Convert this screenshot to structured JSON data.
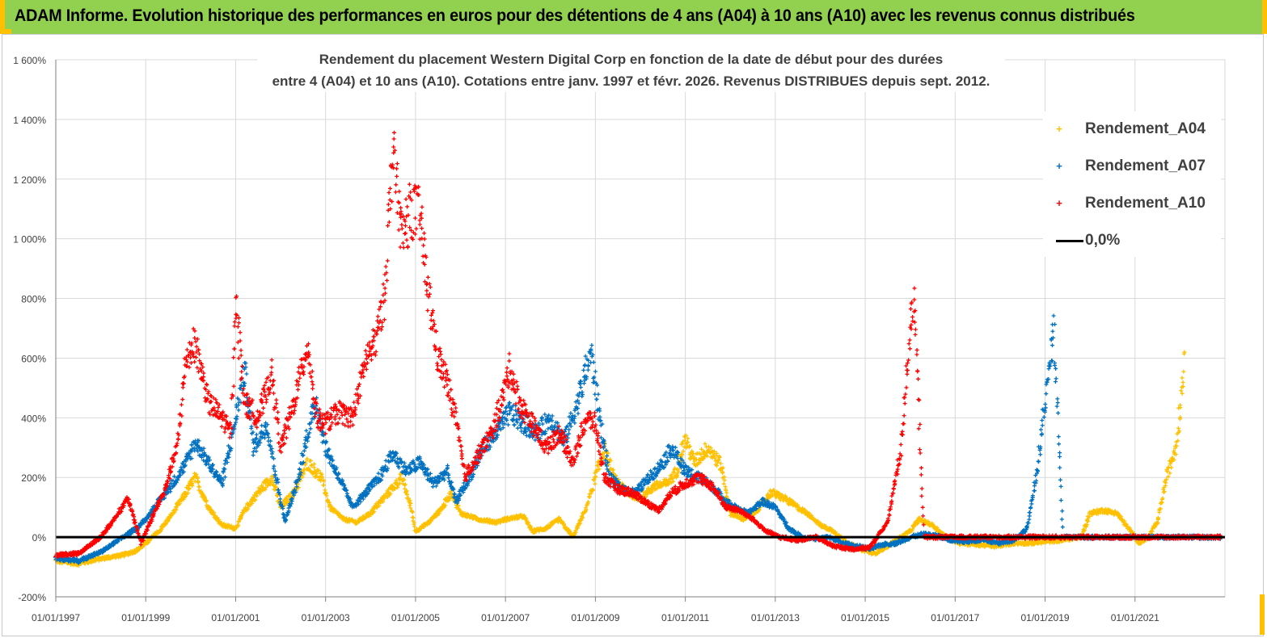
{
  "header": {
    "title": "ADAM Informe. Evolution historique des performances en euros pour des détentions de 4 ans (A04) à 10 ans (A10) avec les revenus connus distribués"
  },
  "chart_data": {
    "type": "scatter",
    "title_line1": "Rendement du placement Western  Digital Corp en fonction de la date de début pour des durées",
    "title_line2": "entre 4 (A04) et 10 ans (A10).  Cotations entre janv. 1997 et févr. 2026. Revenus DISTRIBUES depuis sept. 2012.",
    "x_tick_labels": [
      "01/01/1997",
      "01/01/1999",
      "01/01/2001",
      "01/01/2003",
      "01/01/2005",
      "01/01/2007",
      "01/01/2009",
      "01/01/2011",
      "01/01/2013",
      "01/01/2015",
      "01/01/2017",
      "01/01/2019",
      "01/01/2021"
    ],
    "x_range": [
      1997.0,
      2023.0
    ],
    "y_tick_labels": [
      "-200%",
      "0%",
      "200%",
      "400%",
      "600%",
      "800%",
      "1 000%",
      "1 200%",
      "1 400%",
      "1 600%"
    ],
    "y_range": [
      -200,
      1600
    ],
    "series": [
      {
        "name": "Rendement_A04",
        "color": "#ffc000",
        "points": [
          [
            1997.0,
            -80
          ],
          [
            1997.5,
            -88
          ],
          [
            1998.0,
            -72
          ],
          [
            1998.5,
            -60
          ],
          [
            1998.8,
            -45
          ],
          [
            1999.0,
            -20
          ],
          [
            1999.3,
            20
          ],
          [
            1999.6,
            80
          ],
          [
            1999.9,
            150
          ],
          [
            2000.1,
            200
          ],
          [
            2000.4,
            100
          ],
          [
            2000.7,
            40
          ],
          [
            2001.0,
            30
          ],
          [
            2001.2,
            90
          ],
          [
            2001.5,
            150
          ],
          [
            2001.8,
            200
          ],
          [
            2002.0,
            100
          ],
          [
            2002.3,
            150
          ],
          [
            2002.6,
            250
          ],
          [
            2002.9,
            200
          ],
          [
            2003.1,
            100
          ],
          [
            2003.4,
            60
          ],
          [
            2003.7,
            50
          ],
          [
            2004.0,
            80
          ],
          [
            2004.4,
            150
          ],
          [
            2004.7,
            200
          ],
          [
            2004.9,
            100
          ],
          [
            2005.0,
            20
          ],
          [
            2005.3,
            50
          ],
          [
            2005.6,
            100
          ],
          [
            2005.8,
            150
          ],
          [
            2006.0,
            80
          ],
          [
            2006.4,
            60
          ],
          [
            2006.8,
            50
          ],
          [
            2007.0,
            60
          ],
          [
            2007.4,
            70
          ],
          [
            2007.6,
            20
          ],
          [
            2007.9,
            30
          ],
          [
            2008.2,
            60
          ],
          [
            2008.5,
            0
          ],
          [
            2008.8,
            100
          ],
          [
            2009.0,
            200
          ],
          [
            2009.2,
            300
          ],
          [
            2009.4,
            200
          ],
          [
            2009.7,
            150
          ],
          [
            2010.0,
            130
          ],
          [
            2010.3,
            170
          ],
          [
            2010.6,
            180
          ],
          [
            2010.8,
            220
          ],
          [
            2011.0,
            330
          ],
          [
            2011.2,
            250
          ],
          [
            2011.5,
            300
          ],
          [
            2011.8,
            240
          ],
          [
            2012.0,
            80
          ],
          [
            2012.3,
            60
          ],
          [
            2012.6,
            90
          ],
          [
            2012.9,
            150
          ],
          [
            2013.2,
            130
          ],
          [
            2013.5,
            100
          ],
          [
            2013.8,
            70
          ],
          [
            2014.0,
            40
          ],
          [
            2014.3,
            20
          ],
          [
            2014.6,
            -20
          ],
          [
            2014.9,
            -40
          ],
          [
            2015.2,
            -55
          ],
          [
            2015.5,
            -30
          ],
          [
            2015.8,
            0
          ],
          [
            2016.0,
            20
          ],
          [
            2016.2,
            60
          ],
          [
            2016.5,
            40
          ],
          [
            2016.8,
            0
          ],
          [
            2017.1,
            -20
          ],
          [
            2017.5,
            -25
          ],
          [
            2017.9,
            -30
          ],
          [
            2018.3,
            -20
          ],
          [
            2018.7,
            -20
          ],
          [
            2019.0,
            -15
          ],
          [
            2019.4,
            -10
          ],
          [
            2019.8,
            0
          ],
          [
            2020.0,
            80
          ],
          [
            2020.3,
            90
          ],
          [
            2020.6,
            80
          ],
          [
            2020.9,
            20
          ],
          [
            2021.1,
            -20
          ],
          [
            2021.3,
            0
          ],
          [
            2021.5,
            50
          ],
          [
            2021.7,
            200
          ],
          [
            2021.9,
            300
          ],
          [
            2022.0,
            420
          ],
          [
            2022.1,
            620
          ]
        ]
      },
      {
        "name": "Rendement_A07",
        "color": "#0070c0",
        "points": [
          [
            1997.0,
            -70
          ],
          [
            1997.5,
            -80
          ],
          [
            1998.0,
            -50
          ],
          [
            1998.5,
            0
          ],
          [
            1998.8,
            30
          ],
          [
            1999.0,
            60
          ],
          [
            1999.3,
            120
          ],
          [
            1999.6,
            180
          ],
          [
            1999.9,
            250
          ],
          [
            2000.1,
            320
          ],
          [
            2000.4,
            250
          ],
          [
            2000.7,
            180
          ],
          [
            2001.0,
            400
          ],
          [
            2001.2,
            560
          ],
          [
            2001.4,
            300
          ],
          [
            2001.7,
            380
          ],
          [
            2001.9,
            200
          ],
          [
            2002.1,
            50
          ],
          [
            2002.4,
            200
          ],
          [
            2002.6,
            350
          ],
          [
            2002.8,
            450
          ],
          [
            2003.0,
            300
          ],
          [
            2003.3,
            200
          ],
          [
            2003.6,
            100
          ],
          [
            2003.9,
            150
          ],
          [
            2004.2,
            200
          ],
          [
            2004.5,
            280
          ],
          [
            2004.8,
            220
          ],
          [
            2005.1,
            250
          ],
          [
            2005.4,
            180
          ],
          [
            2005.7,
            220
          ],
          [
            2005.9,
            120
          ],
          [
            2006.2,
            200
          ],
          [
            2006.5,
            300
          ],
          [
            2006.8,
            350
          ],
          [
            2007.1,
            420
          ],
          [
            2007.4,
            380
          ],
          [
            2007.7,
            350
          ],
          [
            2008.0,
            400
          ],
          [
            2008.3,
            320
          ],
          [
            2008.6,
            450
          ],
          [
            2008.9,
            620
          ],
          [
            2009.1,
            400
          ],
          [
            2009.3,
            200
          ],
          [
            2009.6,
            160
          ],
          [
            2009.9,
            150
          ],
          [
            2010.2,
            200
          ],
          [
            2010.5,
            250
          ],
          [
            2010.7,
            300
          ],
          [
            2011.0,
            220
          ],
          [
            2011.3,
            200
          ],
          [
            2011.6,
            170
          ],
          [
            2011.9,
            120
          ],
          [
            2012.1,
            100
          ],
          [
            2012.4,
            80
          ],
          [
            2012.7,
            120
          ],
          [
            2013.0,
            100
          ],
          [
            2013.3,
            30
          ],
          [
            2013.6,
            0
          ],
          [
            2013.9,
            -5
          ],
          [
            2014.2,
            0
          ],
          [
            2014.5,
            -20
          ],
          [
            2014.8,
            -30
          ],
          [
            2015.1,
            -40
          ],
          [
            2015.4,
            -25
          ],
          [
            2015.7,
            -20
          ],
          [
            2016.0,
            0
          ],
          [
            2016.3,
            10
          ],
          [
            2016.6,
            5
          ],
          [
            2016.9,
            -10
          ],
          [
            2017.2,
            -15
          ],
          [
            2017.6,
            -10
          ],
          [
            2018.0,
            -20
          ],
          [
            2018.3,
            -10
          ],
          [
            2018.6,
            30
          ],
          [
            2018.8,
            200
          ],
          [
            2019.0,
            450
          ],
          [
            2019.2,
            700
          ],
          [
            2019.4,
            0
          ],
          [
            2020.0,
            0
          ],
          [
            2021.0,
            0
          ],
          [
            2022.0,
            0
          ],
          [
            2022.9,
            0
          ]
        ]
      },
      {
        "name": "Rendement_A10",
        "color": "#ff0000",
        "points": [
          [
            1997.0,
            -60
          ],
          [
            1997.5,
            -55
          ],
          [
            1998.0,
            0
          ],
          [
            1998.3,
            60
          ],
          [
            1998.6,
            130
          ],
          [
            1998.9,
            -20
          ],
          [
            1999.1,
            50
          ],
          [
            1999.4,
            150
          ],
          [
            1999.7,
            300
          ],
          [
            1999.9,
            600
          ],
          [
            2000.1,
            650
          ],
          [
            2000.4,
            450
          ],
          [
            2000.7,
            400
          ],
          [
            2000.9,
            350
          ],
          [
            2001.0,
            800
          ],
          [
            2001.2,
            450
          ],
          [
            2001.5,
            400
          ],
          [
            2001.8,
            550
          ],
          [
            2002.0,
            300
          ],
          [
            2002.3,
            450
          ],
          [
            2002.6,
            650
          ],
          [
            2002.8,
            400
          ],
          [
            2003.0,
            380
          ],
          [
            2003.3,
            420
          ],
          [
            2003.6,
            400
          ],
          [
            2003.9,
            600
          ],
          [
            2004.1,
            650
          ],
          [
            2004.3,
            800
          ],
          [
            2004.5,
            1300
          ],
          [
            2004.7,
            1000
          ],
          [
            2004.9,
            1100
          ],
          [
            2005.1,
            1080
          ],
          [
            2005.3,
            800
          ],
          [
            2005.5,
            600
          ],
          [
            2005.7,
            520
          ],
          [
            2005.9,
            400
          ],
          [
            2006.1,
            200
          ],
          [
            2006.4,
            280
          ],
          [
            2006.7,
            350
          ],
          [
            2006.9,
            450
          ],
          [
            2007.1,
            570
          ],
          [
            2007.3,
            450
          ],
          [
            2007.6,
            380
          ],
          [
            2007.9,
            300
          ],
          [
            2008.2,
            350
          ],
          [
            2008.5,
            250
          ],
          [
            2008.8,
            400
          ],
          [
            2009.0,
            380
          ],
          [
            2009.2,
            200
          ],
          [
            2009.5,
            160
          ],
          [
            2009.8,
            150
          ],
          [
            2010.1,
            120
          ],
          [
            2010.4,
            90
          ],
          [
            2010.7,
            150
          ],
          [
            2011.0,
            180
          ],
          [
            2011.3,
            200
          ],
          [
            2011.6,
            170
          ],
          [
            2011.9,
            100
          ],
          [
            2012.2,
            90
          ],
          [
            2012.5,
            60
          ],
          [
            2012.8,
            20
          ],
          [
            2013.1,
            0
          ],
          [
            2013.5,
            -10
          ],
          [
            2013.9,
            0
          ],
          [
            2014.3,
            -30
          ],
          [
            2014.7,
            -40
          ],
          [
            2015.1,
            -35
          ],
          [
            2015.5,
            50
          ],
          [
            2015.8,
            300
          ],
          [
            2016.0,
            700
          ],
          [
            2016.1,
            780
          ],
          [
            2016.3,
            0
          ],
          [
            2017.0,
            0
          ],
          [
            2018.0,
            0
          ],
          [
            2019.0,
            0
          ],
          [
            2020.0,
            0
          ],
          [
            2021.0,
            0
          ],
          [
            2022.0,
            0
          ],
          [
            2022.9,
            0
          ]
        ]
      }
    ],
    "reference_line": {
      "name": "0,0%",
      "value": 0,
      "color": "#000000"
    },
    "legend_position": "top-right"
  },
  "colors": {
    "header_bg": "#92d050",
    "accent": "#ffc000",
    "grid": "#d9d9d9"
  },
  "legend": {
    "a04": "Rendement_A04",
    "a07": "Rendement_A07",
    "a10": "Rendement_A10",
    "zero": "0,0%"
  }
}
